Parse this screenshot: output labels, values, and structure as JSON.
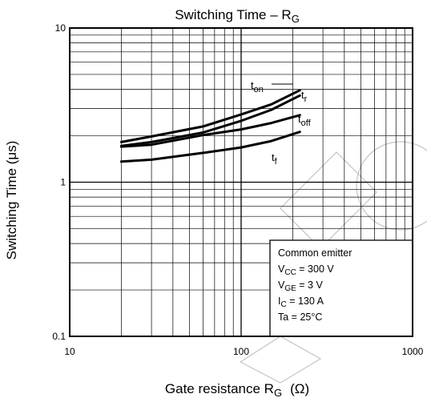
{
  "chart_data": {
    "type": "line",
    "title": {
      "main": "Switching Time – R",
      "sub": "G"
    },
    "xlabel": {
      "main": "Gate resistance   R",
      "sub": "G",
      "unit": "(Ω)"
    },
    "ylabel": "Switching Time   (μs)",
    "xscale": "log",
    "yscale": "log",
    "xlim": [
      10,
      1000
    ],
    "ylim": [
      0.1,
      10
    ],
    "x_ticks": [
      "10",
      "100",
      "1000"
    ],
    "y_ticks": [
      "10",
      "1",
      "0.1"
    ],
    "grid": true,
    "series": [
      {
        "name": "t",
        "sub": "on",
        "x": [
          20,
          30,
          60,
          100,
          150,
          220
        ],
        "y": [
          1.82,
          1.98,
          2.3,
          2.75,
          3.2,
          3.95
        ]
      },
      {
        "name": "t",
        "sub": "r",
        "x": [
          20,
          30,
          60,
          100,
          150,
          220
        ],
        "y": [
          1.72,
          1.82,
          2.1,
          2.5,
          2.95,
          3.65
        ]
      },
      {
        "name": "t",
        "sub": "off",
        "x": [
          20,
          30,
          60,
          100,
          150,
          220
        ],
        "y": [
          1.7,
          1.75,
          2.02,
          2.2,
          2.42,
          2.72
        ]
      },
      {
        "name": "t",
        "sub": "f",
        "x": [
          20,
          30,
          60,
          100,
          150,
          220
        ],
        "y": [
          1.36,
          1.4,
          1.55,
          1.68,
          1.85,
          2.12
        ]
      }
    ],
    "conditions": [
      {
        "pre": "Common emitter",
        "sub": "",
        "post": ""
      },
      {
        "pre": "V",
        "sub": "CC",
        "post": " = 300 V"
      },
      {
        "pre": "V",
        "sub": "GE",
        "post": " = 3 V"
      },
      {
        "pre": "I",
        "sub": "C",
        "post": " = 130 A"
      },
      {
        "pre": "Ta = 25°C",
        "sub": "",
        "post": ""
      }
    ]
  }
}
